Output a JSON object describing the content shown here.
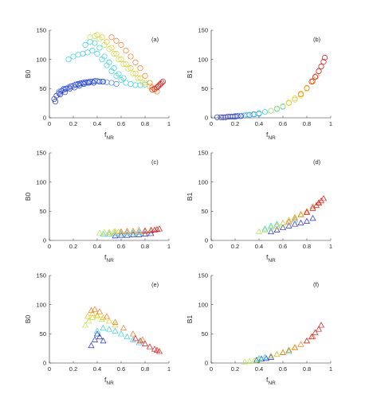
{
  "figure": {
    "colormap": "jet (blue to red)",
    "shared_xlabel": "f",
    "shared_xlabel_subscript": "NR"
  },
  "chart_data": [
    {
      "panel": "(a)",
      "type": "scatter",
      "marker": "circle",
      "xlabel": "f",
      "xlabel_sub": "NR",
      "ylabel": "B0",
      "xlim": [
        0,
        1
      ],
      "ylim": [
        0,
        150
      ],
      "xticks": [
        "0",
        "0.2",
        "0.4",
        "0.6",
        "0.8",
        "1"
      ],
      "yticks": [
        "0",
        "50",
        "100",
        "150"
      ],
      "series": [
        {
          "color": "#1a2acc",
          "x": [
            0.04,
            0.06,
            0.08,
            0.1,
            0.12,
            0.14,
            0.16,
            0.18,
            0.2,
            0.22,
            0.24,
            0.26,
            0.28,
            0.3,
            0.32,
            0.34,
            0.36,
            0.38,
            0.4,
            0.42,
            0.45,
            0.05,
            0.09,
            0.13,
            0.17,
            0.21,
            0.25,
            0.29,
            0.33,
            0.37
          ],
          "y": [
            32,
            38,
            42,
            46,
            48,
            50,
            52,
            54,
            55,
            57,
            58,
            59,
            60,
            61,
            61,
            62,
            62,
            63,
            63,
            62,
            62,
            28,
            40,
            44,
            50,
            52,
            55,
            58,
            60,
            60
          ]
        },
        {
          "color": "#3f7de8",
          "x": [
            0.08,
            0.12,
            0.16,
            0.2,
            0.24,
            0.28,
            0.32,
            0.36,
            0.4,
            0.44,
            0.48,
            0.52,
            0.56
          ],
          "y": [
            45,
            50,
            52,
            55,
            57,
            58,
            60,
            62,
            63,
            62,
            61,
            60,
            58
          ]
        },
        {
          "color": "#2fd0e6",
          "x": [
            0.16,
            0.2,
            0.24,
            0.28,
            0.32,
            0.36,
            0.4,
            0.44,
            0.48,
            0.52,
            0.56,
            0.6,
            0.64,
            0.68,
            0.72,
            0.76,
            0.8,
            0.3,
            0.34,
            0.38,
            0.42,
            0.46,
            0.5,
            0.54,
            0.58,
            0.62
          ],
          "y": [
            100,
            105,
            108,
            110,
            112,
            115,
            110,
            100,
            90,
            80,
            72,
            65,
            60,
            58,
            56,
            56,
            57,
            125,
            130,
            128,
            120,
            105,
            95,
            85,
            75,
            68
          ]
        },
        {
          "color": "#b3e64d",
          "x": [
            0.34,
            0.38,
            0.42,
            0.46,
            0.5,
            0.54,
            0.58,
            0.62,
            0.66,
            0.7,
            0.74,
            0.78
          ],
          "y": [
            138,
            140,
            135,
            125,
            118,
            110,
            100,
            92,
            84,
            76,
            68,
            60
          ]
        },
        {
          "color": "#f2c21a",
          "x": [
            0.4,
            0.44,
            0.48,
            0.52,
            0.56,
            0.6,
            0.64,
            0.68,
            0.72,
            0.76,
            0.8,
            0.84
          ],
          "y": [
            142,
            138,
            130,
            120,
            110,
            100,
            92,
            85,
            76,
            68,
            60,
            54
          ]
        },
        {
          "color": "#f27a1a",
          "x": [
            0.52,
            0.56,
            0.6,
            0.64,
            0.68,
            0.72,
            0.76,
            0.8,
            0.84,
            0.86,
            0.88,
            0.9
          ],
          "y": [
            138,
            132,
            125,
            115,
            105,
            95,
            85,
            72,
            60,
            52,
            48,
            45
          ]
        },
        {
          "color": "#d61a1a",
          "x": [
            0.86,
            0.88,
            0.9,
            0.91,
            0.92,
            0.93,
            0.94,
            0.95
          ],
          "y": [
            48,
            50,
            52,
            54,
            56,
            58,
            60,
            62
          ]
        }
      ]
    },
    {
      "panel": "(b)",
      "type": "scatter",
      "marker": "circle",
      "xlabel": "f",
      "xlabel_sub": "NR",
      "ylabel": "B1",
      "xlim": [
        0,
        1
      ],
      "ylim": [
        0,
        150
      ],
      "xticks": [
        "0",
        "0.2",
        "0.4",
        "0.6",
        "0.8",
        "1"
      ],
      "yticks": [
        "0",
        "50",
        "100",
        "150"
      ],
      "series": [
        {
          "color": "#1a2acc",
          "x": [
            0.05,
            0.08,
            0.1,
            0.12,
            0.14,
            0.16,
            0.18,
            0.2,
            0.22,
            0.25
          ],
          "y": [
            1,
            1,
            1,
            1,
            2,
            2,
            2,
            2,
            3,
            3
          ]
        },
        {
          "color": "#3f7de8",
          "x": [
            0.2,
            0.24,
            0.28,
            0.32,
            0.36,
            0.4
          ],
          "y": [
            3,
            3,
            4,
            5,
            6,
            7
          ]
        },
        {
          "color": "#2fd0e6",
          "x": [
            0.3,
            0.35,
            0.4,
            0.45,
            0.5,
            0.55,
            0.6
          ],
          "y": [
            5,
            6,
            8,
            10,
            12,
            15,
            19
          ]
        },
        {
          "color": "#b3e64d",
          "x": [
            0.5,
            0.55,
            0.6,
            0.65,
            0.7,
            0.75
          ],
          "y": [
            12,
            16,
            20,
            25,
            31,
            38
          ]
        },
        {
          "color": "#f2c21a",
          "x": [
            0.65,
            0.7,
            0.75,
            0.8,
            0.85
          ],
          "y": [
            26,
            33,
            40,
            50,
            62
          ]
        },
        {
          "color": "#f27a1a",
          "x": [
            0.75,
            0.8,
            0.85,
            0.88,
            0.9,
            0.92
          ],
          "y": [
            41,
            51,
            63,
            72,
            80,
            88
          ]
        },
        {
          "color": "#d61a1a",
          "x": [
            0.84,
            0.87,
            0.9,
            0.92,
            0.94,
            0.95
          ],
          "y": [
            62,
            70,
            80,
            88,
            96,
            103
          ]
        }
      ]
    },
    {
      "panel": "(c)",
      "type": "scatter",
      "marker": "triangle",
      "xlabel": "f",
      "xlabel_sub": "NR",
      "ylabel": "B0",
      "xlim": [
        0,
        1
      ],
      "ylim": [
        0,
        150
      ],
      "xticks": [
        "0",
        "0.2",
        "0.4",
        "0.6",
        "0.8",
        "1"
      ],
      "yticks": [
        "0",
        "50",
        "100",
        "150"
      ],
      "series": [
        {
          "color": "#1a2acc",
          "x": [
            0.55,
            0.6,
            0.65,
            0.7,
            0.75,
            0.8,
            0.85
          ],
          "y": [
            8,
            9,
            9,
            10,
            10,
            11,
            12
          ]
        },
        {
          "color": "#2fd0e6",
          "x": [
            0.45,
            0.5,
            0.55,
            0.6,
            0.65,
            0.7,
            0.75
          ],
          "y": [
            11,
            11,
            12,
            12,
            13,
            13,
            14
          ]
        },
        {
          "color": "#b3e64d",
          "x": [
            0.42,
            0.46,
            0.5,
            0.54,
            0.58
          ],
          "y": [
            13,
            14,
            14,
            15,
            15
          ]
        },
        {
          "color": "#f2c21a",
          "x": [
            0.5,
            0.55,
            0.6,
            0.65,
            0.7
          ],
          "y": [
            14,
            15,
            15,
            16,
            16
          ]
        },
        {
          "color": "#f27a1a",
          "x": [
            0.6,
            0.65,
            0.7,
            0.75,
            0.8,
            0.85
          ],
          "y": [
            15,
            16,
            16,
            17,
            17,
            18
          ]
        },
        {
          "color": "#d61a1a",
          "x": [
            0.8,
            0.85,
            0.88,
            0.9,
            0.92
          ],
          "y": [
            16,
            17,
            18,
            19,
            20
          ]
        }
      ]
    },
    {
      "panel": "(d)",
      "type": "scatter",
      "marker": "triangle",
      "xlabel": "f",
      "xlabel_sub": "NR",
      "ylabel": "B1",
      "xlim": [
        0,
        1
      ],
      "ylim": [
        0,
        150
      ],
      "xticks": [
        "0",
        "0.2",
        "0.4",
        "0.6",
        "0.8",
        "1"
      ],
      "yticks": [
        "0",
        "50",
        "100",
        "150"
      ],
      "series": [
        {
          "color": "#1a2acc",
          "x": [
            0.5,
            0.55,
            0.6,
            0.65,
            0.7,
            0.75,
            0.8,
            0.85
          ],
          "y": [
            15,
            18,
            22,
            25,
            28,
            30,
            33,
            38
          ]
        },
        {
          "color": "#2fd0e6",
          "x": [
            0.45,
            0.5,
            0.55,
            0.6,
            0.65,
            0.7
          ],
          "y": [
            20,
            25,
            28,
            30,
            32,
            35
          ]
        },
        {
          "color": "#b3e64d",
          "x": [
            0.4,
            0.45,
            0.5,
            0.55
          ],
          "y": [
            15,
            18,
            22,
            25
          ]
        },
        {
          "color": "#f2c21a",
          "x": [
            0.55,
            0.6,
            0.65,
            0.7,
            0.75
          ],
          "y": [
            25,
            30,
            35,
            40,
            45
          ]
        },
        {
          "color": "#f27a1a",
          "x": [
            0.65,
            0.7,
            0.75,
            0.8,
            0.85,
            0.9
          ],
          "y": [
            32,
            38,
            44,
            50,
            58,
            65
          ]
        },
        {
          "color": "#d61a1a",
          "x": [
            0.8,
            0.85,
            0.88,
            0.9,
            0.92,
            0.94
          ],
          "y": [
            48,
            55,
            60,
            64,
            68,
            72
          ]
        }
      ]
    },
    {
      "panel": "(e)",
      "type": "scatter",
      "marker": "triangle",
      "xlabel": "f",
      "xlabel_sub": "NR",
      "ylabel": "B0",
      "xlim": [
        0,
        1
      ],
      "ylim": [
        0,
        150
      ],
      "xticks": [
        "0",
        "0.2",
        "0.4",
        "0.6",
        "0.8",
        "1"
      ],
      "yticks": [
        "0",
        "50",
        "100",
        "150"
      ],
      "series": [
        {
          "color": "#1a2acc",
          "x": [
            0.35,
            0.38,
            0.4,
            0.42,
            0.45
          ],
          "y": [
            30,
            40,
            50,
            45,
            38
          ]
        },
        {
          "color": "#2fd0e6",
          "x": [
            0.4,
            0.45,
            0.5,
            0.55,
            0.6,
            0.65,
            0.7,
            0.75
          ],
          "y": [
            55,
            60,
            58,
            55,
            50,
            45,
            40,
            35
          ]
        },
        {
          "color": "#b3e64d",
          "x": [
            0.3,
            0.33,
            0.36,
            0.4,
            0.44
          ],
          "y": [
            65,
            72,
            78,
            80,
            75
          ]
        },
        {
          "color": "#f2c21a",
          "x": [
            0.32,
            0.36,
            0.4,
            0.45,
            0.5,
            0.55
          ],
          "y": [
            80,
            85,
            82,
            78,
            72,
            65
          ]
        },
        {
          "color": "#f27a1a",
          "x": [
            0.35,
            0.38,
            0.42,
            0.48,
            0.55,
            0.62,
            0.7,
            0.78
          ],
          "y": [
            90,
            92,
            88,
            80,
            70,
            60,
            50,
            40
          ]
        },
        {
          "color": "#d61a1a",
          "x": [
            0.72,
            0.76,
            0.8,
            0.84,
            0.88,
            0.9,
            0.92
          ],
          "y": [
            42,
            38,
            33,
            28,
            24,
            22,
            20
          ]
        }
      ]
    },
    {
      "panel": "(f)",
      "type": "scatter",
      "marker": "triangle",
      "xlabel": "f",
      "xlabel_sub": "NR",
      "ylabel": "B1",
      "xlim": [
        0,
        1
      ],
      "ylim": [
        0,
        150
      ],
      "xticks": [
        "0",
        "0.2",
        "0.4",
        "0.6",
        "0.8",
        "1"
      ],
      "yticks": [
        "0",
        "50",
        "100",
        "150"
      ],
      "series": [
        {
          "color": "#1a2acc",
          "x": [
            0.38,
            0.42,
            0.46,
            0.5
          ],
          "y": [
            5,
            7,
            8,
            10
          ]
        },
        {
          "color": "#2fd0e6",
          "x": [
            0.4,
            0.45,
            0.5,
            0.55,
            0.6,
            0.65
          ],
          "y": [
            8,
            10,
            12,
            15,
            18,
            20
          ]
        },
        {
          "color": "#b3e64d",
          "x": [
            0.28,
            0.32,
            0.36,
            0.4
          ],
          "y": [
            2,
            3,
            4,
            6
          ]
        },
        {
          "color": "#f2c21a",
          "x": [
            0.5,
            0.55,
            0.6,
            0.65,
            0.7
          ],
          "y": [
            12,
            15,
            18,
            22,
            26
          ]
        },
        {
          "color": "#f27a1a",
          "x": [
            0.6,
            0.65,
            0.7,
            0.75,
            0.8,
            0.85
          ],
          "y": [
            18,
            22,
            27,
            32,
            38,
            45
          ]
        },
        {
          "color": "#d61a1a",
          "x": [
            0.8,
            0.84,
            0.87,
            0.9,
            0.92
          ],
          "y": [
            38,
            45,
            52,
            58,
            65
          ]
        }
      ]
    }
  ]
}
